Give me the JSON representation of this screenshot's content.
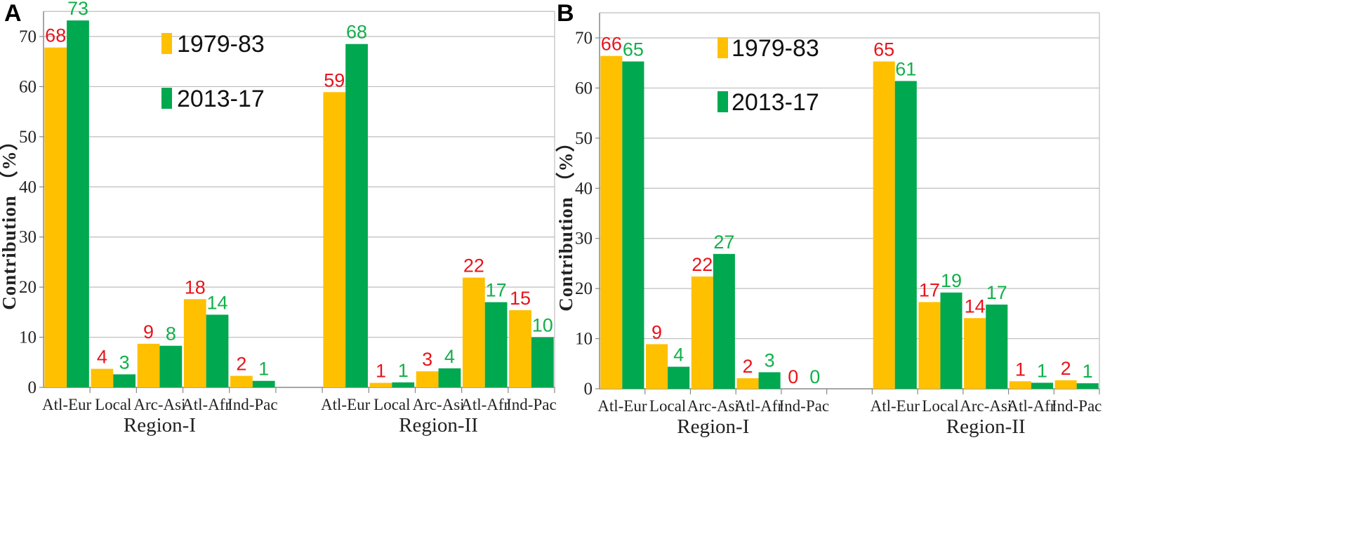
{
  "chart_data": [
    {
      "panel": "A",
      "type": "bar",
      "ylabel": "Contribution （%）",
      "ylim": [
        0,
        75
      ],
      "yticks": [
        0,
        10,
        20,
        30,
        40,
        50,
        60,
        70
      ],
      "grid": true,
      "legend_placement": "top-center",
      "groups": [
        {
          "name": "Region-I",
          "categories": [
            "Atl-Eur",
            "Local",
            "Arc-Asi",
            "Atl-Afr",
            "Ind-Pac"
          ]
        },
        {
          "name": "Region-II",
          "categories": [
            "Atl-Eur",
            "Local",
            "Arc-Asi",
            "Atl-Afr",
            "Ind-Pac"
          ]
        }
      ],
      "series": [
        {
          "name": "1979-83",
          "color": "#FFC000",
          "label_color": "#E8141B",
          "values": [
            67.8,
            3.7,
            8.7,
            17.6,
            2.3,
            58.9,
            0.9,
            3.2,
            21.9,
            15.4
          ],
          "labels": [
            "68",
            "4",
            "9",
            "18",
            "2",
            "59",
            "1",
            "3",
            "22",
            "15"
          ]
        },
        {
          "name": "2013-17",
          "color": "#00A84F",
          "label_color": "#12B04A",
          "values": [
            73.2,
            2.6,
            8.3,
            14.5,
            1.3,
            68.5,
            1.0,
            3.8,
            17.0,
            10.0
          ],
          "labels": [
            "73",
            "3",
            "8",
            "14",
            "1",
            "68",
            "1",
            "4",
            "17",
            "10"
          ]
        }
      ]
    },
    {
      "panel": "B",
      "type": "bar",
      "ylabel": "Contribution （%）",
      "ylim": [
        0,
        75
      ],
      "yticks": [
        0,
        10,
        20,
        30,
        40,
        50,
        60,
        70
      ],
      "grid": true,
      "legend_placement": "top-center",
      "groups": [
        {
          "name": "Region-I",
          "categories": [
            "Atl-Eur",
            "Local",
            "Arc-Asi",
            "Atl-Afr",
            "Ind-Pac"
          ]
        },
        {
          "name": "Region-II",
          "categories": [
            "Atl-Eur",
            "Local",
            "Arc-Asi",
            "Atl-Afr",
            "Ind-Pac"
          ]
        }
      ],
      "series": [
        {
          "name": "1979-83",
          "color": "#FFC000",
          "label_color": "#E8141B",
          "values": [
            66.4,
            8.9,
            22.4,
            2.1,
            0,
            65.3,
            17.3,
            14.1,
            1.5,
            1.7
          ],
          "labels": [
            "66",
            "9",
            "22",
            "2",
            "0",
            "65",
            "17",
            "14",
            "1",
            "2"
          ]
        },
        {
          "name": "2013-17",
          "color": "#00A84F",
          "label_color": "#12B04A",
          "values": [
            65.3,
            4.4,
            26.9,
            3.3,
            0,
            61.4,
            19.2,
            16.8,
            1.2,
            1.1
          ],
          "labels": [
            "65",
            "4",
            "27",
            "3",
            "0",
            "61",
            "19",
            "17",
            "1",
            "1"
          ]
        }
      ]
    }
  ]
}
